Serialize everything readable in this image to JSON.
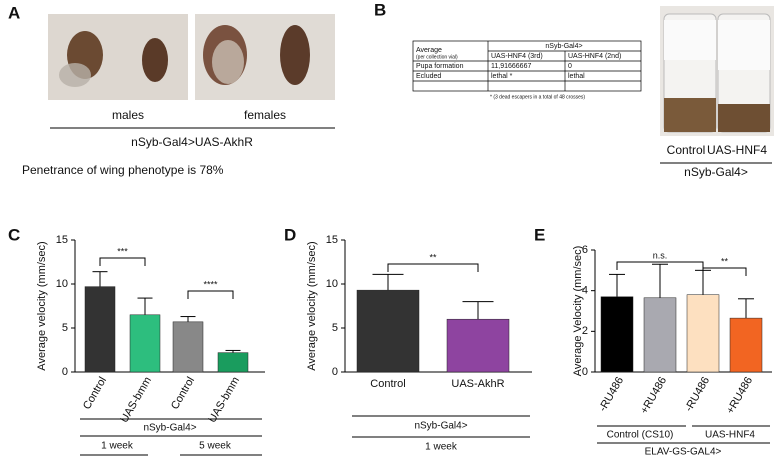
{
  "panel_labels": [
    "A",
    "B",
    "C",
    "D",
    "E"
  ],
  "panel_a": {
    "photo_labels": [
      "males",
      "females"
    ],
    "genotype": "nSyb-Gal4>UAS-AkhR",
    "note": "Penetrance of wing phenotype is 78%"
  },
  "panel_b": {
    "table": {
      "header": [
        "Average",
        "(per collection vial)",
        "nSyb-Gal4>"
      ],
      "subheader": [
        "UAS-HNF4 (3rd)",
        "UAS-HNF4 (2nd)"
      ],
      "rows": [
        [
          "Pupa formation",
          "11,91666667",
          "0"
        ],
        [
          "Ecluded",
          "lethal *",
          "lethal"
        ]
      ],
      "footnote": "* (3 dead escapers in a total of 48 crosses)"
    },
    "photo_labels": [
      "Control",
      "UAS-HNF4"
    ],
    "genotype": "nSyb-Gal4>"
  },
  "chart_data": [
    {
      "type": "bar",
      "ylabel": "Average velocity (mm/sec)",
      "categories": [
        "Control",
        "UAS-bmm",
        "Control",
        "UAS-bmm"
      ],
      "values": [
        9.7,
        6.5,
        5.7,
        2.2
      ],
      "errors": [
        1.7,
        1.9,
        0.6,
        0.25
      ],
      "colors": [
        "#333333",
        "#2dbe7e",
        "#888888",
        "#1a9c5e"
      ],
      "ylim": [
        0,
        15
      ],
      "yticks": [
        0,
        5,
        10,
        15
      ],
      "annotations": [
        "***",
        "****"
      ],
      "group_labels": [
        "nSyb-Gal4>",
        "1 week",
        "5 week"
      ]
    },
    {
      "type": "bar",
      "ylabel": "Average velocity (mm/sec)",
      "categories": [
        "Control",
        "UAS-AkhR"
      ],
      "values": [
        9.3,
        6.0
      ],
      "errors": [
        1.8,
        2.0
      ],
      "colors": [
        "#333333",
        "#8e44a0"
      ],
      "ylim": [
        0,
        15
      ],
      "yticks": [
        0,
        5,
        10,
        15
      ],
      "annotations": [
        "**"
      ],
      "group_labels": [
        "nSyb-Gal4>",
        "1 week"
      ]
    },
    {
      "type": "bar",
      "ylabel": "Average Velocity (mm/sec)",
      "categories": [
        "-RU486",
        "+RU486",
        "-RU486",
        "+RU486"
      ],
      "values": [
        3.7,
        3.65,
        3.8,
        2.65
      ],
      "errors": [
        1.1,
        1.65,
        1.2,
        0.95
      ],
      "colors": [
        "#000000",
        "#a9a9b0",
        "#fde0c0",
        "#f26522"
      ],
      "ylim": [
        0,
        6
      ],
      "yticks": [
        0,
        2,
        4,
        6
      ],
      "annotations": [
        "n.s.",
        "**"
      ],
      "group_labels": [
        "Control (CS10)",
        "UAS-HNF4",
        "ELAV-GS-GAL4>"
      ]
    }
  ]
}
